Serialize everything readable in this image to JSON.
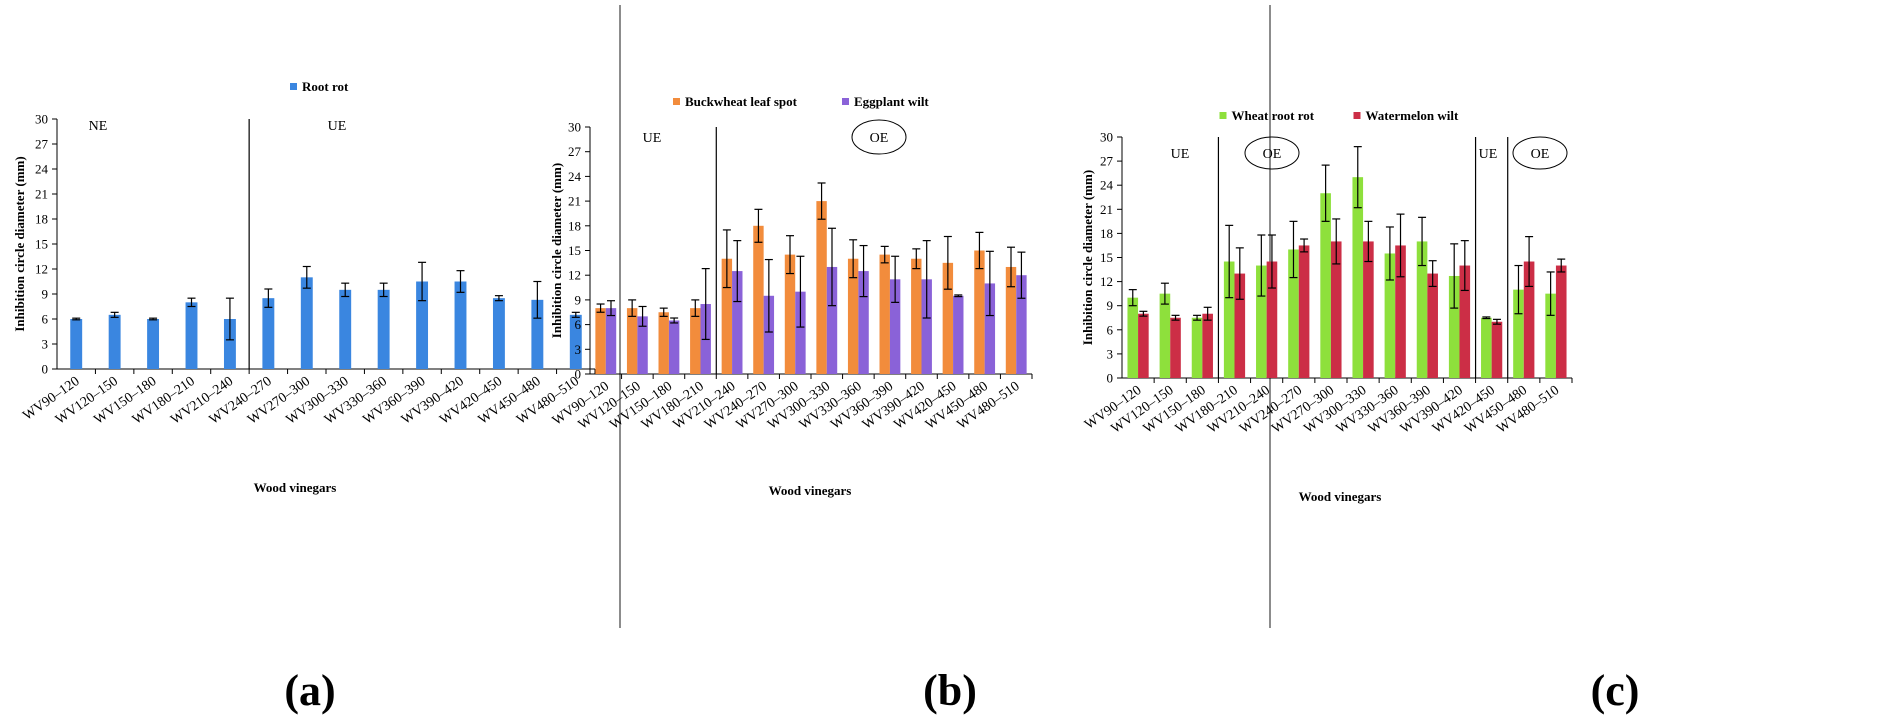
{
  "panels": [
    {
      "letter": "(a)"
    },
    {
      "letter": "(b)"
    },
    {
      "letter": "(c)"
    }
  ],
  "chart_data": [
    {
      "type": "bar",
      "categories": [
        "WV90–120",
        "WV120–150",
        "WV150–180",
        "WV180–210",
        "WV210–240",
        "WV240–270",
        "WV270–300",
        "WV300–330",
        "WV330–360",
        "WV360–390",
        "WV390–420",
        "WV420–450",
        "WV450–480",
        "WV480–510"
      ],
      "series": [
        {
          "name": "Root rot",
          "color": "#3a86e0",
          "values": [
            6.0,
            6.5,
            6.0,
            8.0,
            6.0,
            8.5,
            11.0,
            9.5,
            9.5,
            10.5,
            10.5,
            8.5,
            8.3,
            6.5
          ],
          "errors": [
            0.1,
            0.3,
            0.1,
            0.5,
            2.5,
            1.1,
            1.3,
            0.8,
            0.8,
            2.3,
            1.3,
            0.3,
            2.2,
            0.3
          ]
        }
      ],
      "ylim": [
        0,
        30
      ],
      "yticks": [
        0,
        3,
        6,
        9,
        12,
        15,
        18,
        21,
        24,
        27,
        30
      ],
      "ylabel": "Inhibition circle diameter (mm)",
      "xlabel": "Wood vinegars",
      "legend_placement": "top",
      "dividers_after": [
        4
      ],
      "regions": [
        {
          "label": "NE",
          "ellipse": false
        },
        {
          "label": "UE",
          "ellipse": false
        }
      ]
    },
    {
      "type": "bar",
      "categories": [
        "WV90–120",
        "WV120–150",
        "WV150–180",
        "WV180–210",
        "WV210–240",
        "WV240–270",
        "WV270–300",
        "WV300–330",
        "WV330–360",
        "WV360–390",
        "WV390–420",
        "WV420–450",
        "WV450–480",
        "WV480–510"
      ],
      "series": [
        {
          "name": "Buckwheat leaf spot",
          "color": "#f28c3c",
          "values": [
            8.0,
            8.0,
            7.5,
            8.0,
            14.0,
            18.0,
            14.5,
            21.0,
            14.0,
            14.5,
            14.0,
            13.5,
            15.0,
            13.0
          ],
          "errors": [
            0.5,
            1.0,
            0.5,
            1.0,
            3.5,
            2.0,
            2.3,
            2.2,
            2.3,
            1.0,
            1.2,
            3.2,
            2.2,
            2.4
          ]
        },
        {
          "name": "Eggplant wilt",
          "color": "#8a62d8",
          "values": [
            8.0,
            7.0,
            6.5,
            8.5,
            12.5,
            9.5,
            10.0,
            13.0,
            12.5,
            11.5,
            11.5,
            9.5,
            11.0,
            12.0
          ],
          "errors": [
            0.9,
            1.2,
            0.3,
            4.3,
            3.7,
            4.4,
            4.3,
            4.7,
            3.1,
            2.8,
            4.7,
            0.1,
            3.9,
            2.8
          ]
        }
      ],
      "ylim": [
        0,
        30
      ],
      "yticks": [
        0,
        3,
        6,
        9,
        12,
        15,
        18,
        21,
        24,
        27,
        30
      ],
      "ylabel": "Inhibition circle diameter (mm)",
      "xlabel": "Wood vinegars",
      "legend_placement": "top",
      "dividers_after": [
        3
      ],
      "regions": [
        {
          "label": "UE",
          "ellipse": false
        },
        {
          "label": "OE",
          "ellipse": true
        }
      ]
    },
    {
      "type": "bar",
      "categories": [
        "WV90–120",
        "WV120–150",
        "WV150–180",
        "WV180–210",
        "WV210–240",
        "WV240–270",
        "WV270–300",
        "WV300–330",
        "WV330–360",
        "WV360–390",
        "WV390–420",
        "WV420–450",
        "WV450–480",
        "WV480–510"
      ],
      "series": [
        {
          "name": "Wheat root rot",
          "color": "#8ee03c",
          "values": [
            10.0,
            10.5,
            7.5,
            14.5,
            14.0,
            16.0,
            23.0,
            25.0,
            15.5,
            17.0,
            12.7,
            7.5,
            11.0,
            10.5
          ],
          "errors": [
            1.0,
            1.3,
            0.3,
            4.5,
            3.8,
            3.5,
            3.5,
            3.8,
            3.3,
            3.0,
            4.0,
            0.1,
            3.0,
            2.7
          ]
        },
        {
          "name": "Watermelon wilt",
          "color": "#cc2e46",
          "values": [
            8.0,
            7.5,
            8.0,
            13.0,
            14.5,
            16.5,
            17.0,
            17.0,
            16.5,
            13.0,
            14.0,
            7.0,
            14.5,
            14.0
          ],
          "errors": [
            0.3,
            0.3,
            0.8,
            3.2,
            3.3,
            0.8,
            2.8,
            2.5,
            3.9,
            1.6,
            3.1,
            0.3,
            3.1,
            0.8
          ]
        }
      ],
      "ylim": [
        0,
        30
      ],
      "yticks": [
        0,
        3,
        6,
        9,
        12,
        15,
        18,
        21,
        24,
        27,
        30
      ],
      "ylabel": "Inhibition circle diameter (mm)",
      "xlabel": "Wood vinegars",
      "legend_placement": "top",
      "dividers_after": [
        2,
        10,
        11
      ],
      "regions": [
        {
          "label": "UE",
          "ellipse": false
        },
        {
          "label": "OE",
          "ellipse": true
        },
        {
          "label": "UE",
          "ellipse": false
        },
        {
          "label": "OE",
          "ellipse": true
        }
      ]
    }
  ]
}
